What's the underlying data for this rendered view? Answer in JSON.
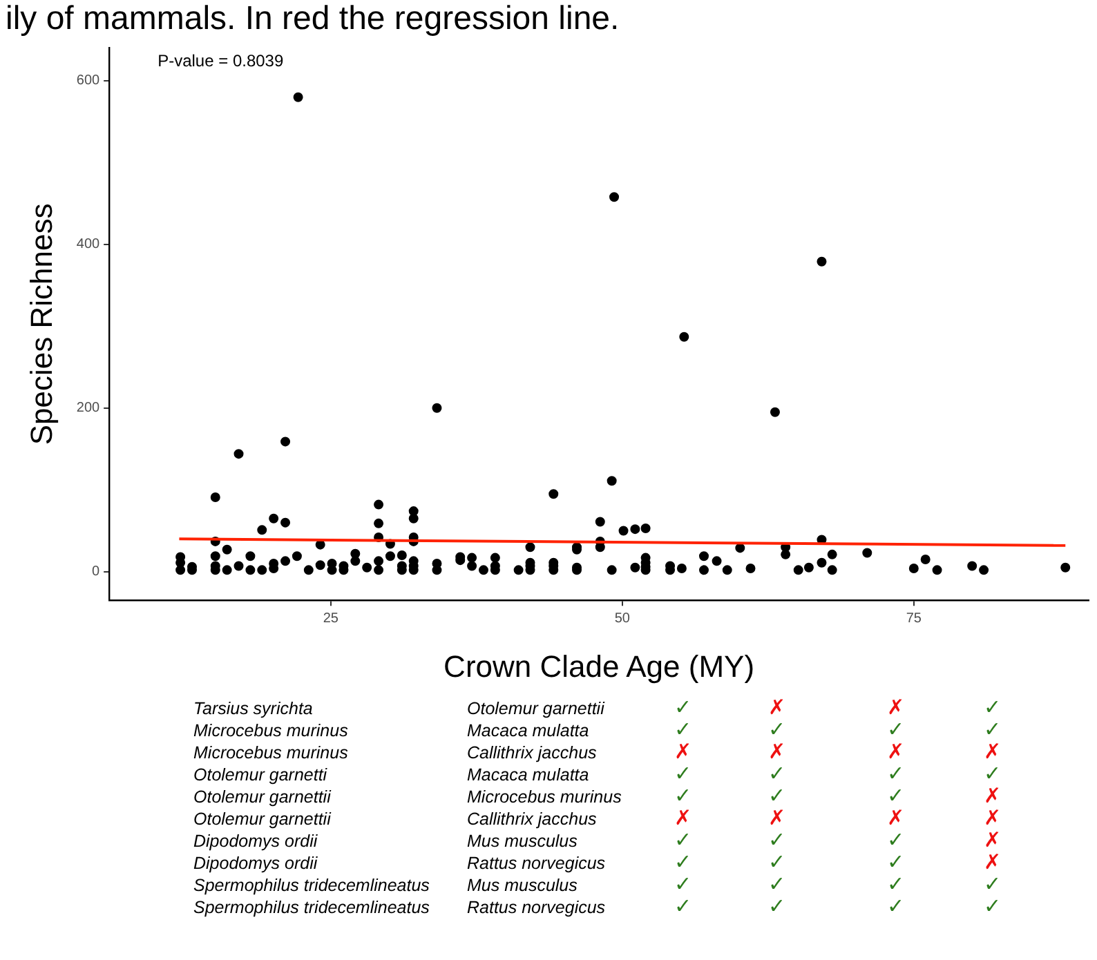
{
  "chart_data": [
    {
      "type": "scatter",
      "title": "ily of mammals. In red the regression line.",
      "xlabel": "Crown Clade Age (MY)",
      "ylabel": "Species Richness",
      "annotations": [
        "P-value = 0.8039"
      ],
      "xlim": [
        6,
        90
      ],
      "xticks": [
        25,
        50,
        75
      ],
      "ylim": [
        -35,
        640
      ],
      "yticks": [
        0,
        200,
        400,
        600
      ],
      "grid": false,
      "legend": false,
      "marker": "circle",
      "series": [
        {
          "type": "scatter",
          "color": "#000000",
          "x": [
            12.1,
            12.1,
            12.1,
            13.1,
            13.1,
            15.1,
            15.1,
            15.1,
            15.1,
            15.1,
            16.1,
            16.1,
            17.1,
            17.1,
            18.1,
            18.1,
            19.1,
            19.1,
            20.1,
            20.1,
            20.1,
            21.1,
            21.1,
            21.1,
            22.1,
            22.2,
            23.1,
            24.1,
            24.1,
            25.1,
            25.1,
            26.1,
            26.1,
            27.1,
            27.1,
            28.1,
            29.1,
            29.1,
            29.1,
            29.1,
            29.1,
            30.1,
            30.1,
            31.1,
            31.1,
            31.1,
            32.1,
            32.1,
            32.1,
            32.1,
            32.1,
            32.1,
            32.1,
            34.1,
            34.1,
            34.1,
            36.1,
            36.1,
            37.1,
            37.1,
            38.1,
            39.1,
            39.1,
            39.1,
            41.1,
            42.1,
            42.1,
            42.1,
            42.1,
            44.1,
            44.1,
            44.1,
            44.1,
            46.1,
            46.1,
            46.1,
            46.1,
            48.1,
            48.1,
            48.1,
            49.1,
            49.1,
            49.3,
            50.1,
            51.1,
            51.1,
            52.0,
            52.0,
            52.0,
            52.0,
            52.0,
            54.1,
            54.1,
            55.1,
            55.3,
            57.0,
            57.0,
            58.1,
            59.0,
            60.1,
            61.0,
            63.1,
            64.0,
            64.0,
            65.1,
            66.0,
            67.1,
            67.1,
            67.1,
            68.0,
            68.0,
            71.0,
            75.0,
            76.0,
            77.0,
            80.0,
            81.0,
            88.0
          ],
          "values": [
            18,
            11,
            2,
            6,
            2,
            91,
            37,
            19,
            7,
            2,
            27,
            2,
            144,
            7,
            19,
            2,
            51,
            2,
            65,
            10,
            4,
            159,
            60,
            13,
            19,
            580,
            2,
            33,
            8,
            10,
            2,
            7,
            2,
            22,
            13,
            5,
            82,
            59,
            42,
            13,
            2,
            34,
            19,
            20,
            7,
            2,
            74,
            65,
            42,
            37,
            13,
            7,
            2,
            200,
            10,
            2,
            18,
            14,
            17,
            7,
            2,
            17,
            7,
            2,
            2,
            30,
            11,
            7,
            2,
            95,
            11,
            7,
            2,
            30,
            27,
            5,
            2,
            61,
            37,
            30,
            111,
            2,
            458,
            50,
            52,
            5,
            53,
            17,
            11,
            6,
            2,
            7,
            2,
            4,
            287,
            19,
            2,
            13,
            2,
            29,
            4,
            195,
            30,
            21,
            2,
            5,
            379,
            39,
            11,
            21,
            2,
            23,
            4,
            15,
            2,
            7,
            2,
            5
          ]
        },
        {
          "type": "line",
          "color": "#ff2200",
          "marker": "none",
          "x": [
            12,
            88
          ],
          "values": [
            40,
            32
          ]
        }
      ]
    },
    {
      "type": "other",
      "annotations": [
        "Tarsius syrichta",
        "Otolemur garnettii",
        "✓",
        "✗",
        "✗",
        "✓",
        "Microcebus murinus",
        "Macaca mulatta",
        "✓",
        "✓",
        "✓",
        "✓",
        "Microcebus murinus",
        "Callithrix jacchus",
        "✗",
        "✗",
        "✗",
        "✗",
        "Otolemur garnetti",
        "Macaca mulatta",
        "✓",
        "✓",
        "✓",
        "✓",
        "Otolemur garnettii",
        "Microcebus murinus",
        "✓",
        "✓",
        "✓",
        "✗",
        "Otolemur garnettii",
        "Callithrix jacchus",
        "✗",
        "✗",
        "✗",
        "✗",
        "Dipodomys ordii",
        "Mus musculus",
        "✓",
        "✓",
        "✓",
        "✗",
        "Dipodomys ordii",
        "Rattus norvegicus",
        "✓",
        "✓",
        "✓",
        "✗",
        "Spermophilus tridecemlineatus",
        "Mus musculus",
        "✓",
        "✓",
        "✓",
        "✓",
        "Spermophilus tridecemlineatus",
        "Rattus norvegicus",
        "✓",
        "✓",
        "✓",
        "✓"
      ],
      "colors": [
        "#000000",
        "#000000",
        "#2e7d1e",
        "#ee1111",
        "#ee1111",
        "#2e7d1e",
        "#000000",
        "#000000",
        "#2e7d1e",
        "#2e7d1e",
        "#2e7d1e",
        "#2e7d1e",
        "#000000",
        "#000000",
        "#ee1111",
        "#ee1111",
        "#ee1111",
        "#ee1111",
        "#000000",
        "#000000",
        "#2e7d1e",
        "#2e7d1e",
        "#2e7d1e",
        "#2e7d1e",
        "#000000",
        "#000000",
        "#2e7d1e",
        "#2e7d1e",
        "#2e7d1e",
        "#ee1111",
        "#000000",
        "#000000",
        "#ee1111",
        "#ee1111",
        "#ee1111",
        "#ee1111",
        "#000000",
        "#000000",
        "#2e7d1e",
        "#2e7d1e",
        "#2e7d1e",
        "#ee1111",
        "#000000",
        "#000000",
        "#2e7d1e",
        "#2e7d1e",
        "#2e7d1e",
        "#ee1111",
        "#000000",
        "#000000",
        "#2e7d1e",
        "#2e7d1e",
        "#2e7d1e",
        "#2e7d1e",
        "#000000",
        "#000000",
        "#2e7d1e",
        "#2e7d1e",
        "#2e7d1e",
        "#2e7d1e"
      ]
    }
  ]
}
